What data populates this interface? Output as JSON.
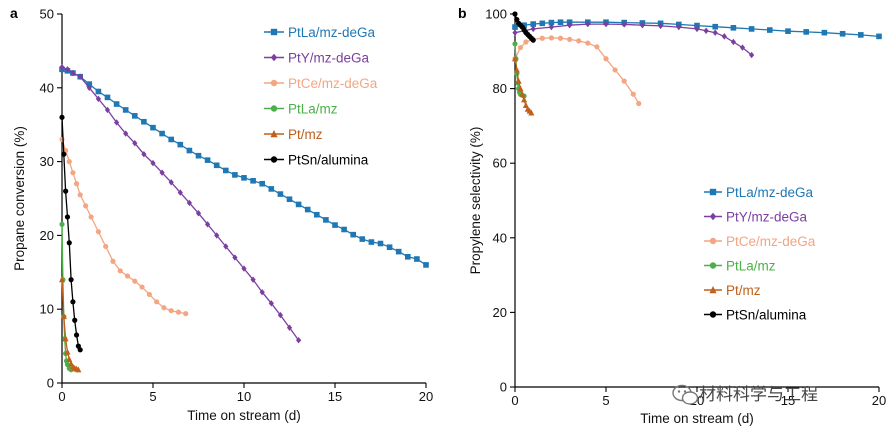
{
  "watermark": {
    "text": "材料科学与工程",
    "icon": "wechat-icon"
  },
  "chart_data": [
    {
      "panel_label": "a",
      "type": "scatter",
      "xlabel": "Time on stream (d)",
      "ylabel": "Propane conversion (%)",
      "xlim": [
        0,
        20
      ],
      "ylim": [
        0,
        50
      ],
      "xticks": [
        0,
        5,
        10,
        15,
        20
      ],
      "yticks": [
        0,
        10,
        20,
        30,
        40,
        50
      ],
      "legend_position": "top-right",
      "series": [
        {
          "name": "PtLa/mz-deGa",
          "color": "#1f77b4",
          "marker": "square",
          "x": [
            0,
            0.3,
            0.6,
            1,
            1.5,
            2,
            2.5,
            3,
            3.5,
            4,
            4.5,
            5,
            5.5,
            6,
            6.5,
            7,
            7.5,
            8,
            8.5,
            9,
            9.5,
            10,
            10.5,
            11,
            11.5,
            12,
            12.5,
            13,
            13.5,
            14,
            14.5,
            15,
            15.5,
            16,
            16.5,
            17,
            17.5,
            18,
            18.5,
            19,
            19.5,
            20
          ],
          "y": [
            42.5,
            42.3,
            42,
            41.5,
            40.5,
            39.5,
            38.7,
            37.8,
            37,
            36.2,
            35.4,
            34.6,
            33.8,
            33,
            32.3,
            31.5,
            30.8,
            30.2,
            29.5,
            28.8,
            28.2,
            27.8,
            27.4,
            27,
            26.3,
            25.6,
            24.9,
            24.2,
            23.5,
            22.8,
            22.1,
            21.4,
            20.8,
            20.1,
            19.5,
            19.1,
            18.9,
            18.4,
            17.8,
            17.1,
            16.8,
            16
          ]
        },
        {
          "name": "PtY/mz-deGa",
          "color": "#7b3fa0",
          "marker": "diamond",
          "x": [
            0,
            0.3,
            0.6,
            1,
            1.5,
            2,
            2.5,
            3,
            3.5,
            4,
            4.5,
            5,
            5.5,
            6,
            6.5,
            7,
            7.5,
            8,
            8.5,
            9,
            9.5,
            10,
            10.5,
            11,
            11.5,
            12,
            12.5,
            13
          ],
          "y": [
            42.8,
            42.5,
            42,
            41.5,
            40,
            38.5,
            37,
            35.3,
            33.8,
            32.5,
            31,
            29.8,
            28.5,
            27.2,
            25.8,
            24.4,
            23,
            21.5,
            20,
            18.5,
            17,
            15.5,
            14,
            12.3,
            10.8,
            9.2,
            7.5,
            5.8
          ]
        },
        {
          "name": "PtCe/mz-deGa",
          "color": "#f4a582",
          "marker": "circle",
          "x": [
            0,
            0.2,
            0.4,
            0.6,
            0.8,
            1,
            1.3,
            1.6,
            2,
            2.4,
            2.8,
            3.2,
            3.6,
            4,
            4.4,
            4.8,
            5.2,
            5.6,
            6,
            6.4,
            6.8
          ],
          "y": [
            33,
            31.5,
            30,
            28.5,
            27,
            25.5,
            24,
            22.5,
            20.5,
            18.5,
            16.5,
            15.2,
            14.5,
            13.8,
            13,
            12,
            11,
            10.2,
            9.8,
            9.6,
            9.4
          ]
        },
        {
          "name": "PtLa/mz",
          "color": "#4daf4a",
          "marker": "circle",
          "x": [
            0,
            0.05,
            0.1,
            0.15,
            0.2,
            0.25,
            0.3,
            0.4,
            0.5
          ],
          "y": [
            21.5,
            14,
            9,
            6,
            4,
            3,
            2.5,
            2,
            1.8
          ]
        },
        {
          "name": "Pt/mz",
          "color": "#c0601a",
          "marker": "triangle",
          "x": [
            0,
            0.1,
            0.2,
            0.3,
            0.4,
            0.5,
            0.6,
            0.7,
            0.8,
            0.9
          ],
          "y": [
            14,
            9,
            6,
            4.2,
            3.2,
            2.6,
            2.2,
            2,
            1.9,
            1.8
          ]
        },
        {
          "name": "PtSn/alumina",
          "color": "#000000",
          "marker": "circle",
          "x": [
            0,
            0.1,
            0.2,
            0.3,
            0.4,
            0.5,
            0.6,
            0.7,
            0.8,
            0.9,
            1.0
          ],
          "y": [
            36,
            31,
            26,
            22.5,
            19,
            14,
            11,
            8.5,
            6.5,
            5,
            4.5
          ]
        }
      ]
    },
    {
      "panel_label": "b",
      "type": "scatter",
      "xlabel": "Time on stream (d)",
      "ylabel": "Propylene selectivity (%)",
      "xlim": [
        0,
        20
      ],
      "ylim": [
        0,
        100
      ],
      "xticks": [
        0,
        5,
        10,
        15,
        20
      ],
      "yticks": [
        0,
        20,
        40,
        60,
        80,
        100
      ],
      "legend_position": "center-right",
      "series": [
        {
          "name": "PtLa/mz-deGa",
          "color": "#1f77b4",
          "marker": "square",
          "x": [
            0,
            0.5,
            1,
            1.5,
            2,
            2.5,
            3,
            4,
            5,
            6,
            7,
            8,
            9,
            10,
            11,
            12,
            13,
            14,
            15,
            16,
            17,
            18,
            19,
            20
          ],
          "y": [
            96.5,
            97,
            97.3,
            97.5,
            97.7,
            97.8,
            97.8,
            97.8,
            97.8,
            97.7,
            97.6,
            97.5,
            97.2,
            96.9,
            96.6,
            96.3,
            96,
            95.7,
            95.4,
            95.2,
            95,
            94.7,
            94.4,
            94
          ]
        },
        {
          "name": "PtY/mz-deGa",
          "color": "#7b3fa0",
          "marker": "diamond",
          "x": [
            0,
            0.5,
            1,
            2,
            3,
            4,
            5,
            6,
            7,
            8,
            9,
            10,
            10.5,
            11,
            11.5,
            12,
            12.5,
            13
          ],
          "y": [
            95,
            95.5,
            96,
            96.5,
            97,
            97.3,
            97.3,
            97.2,
            97,
            96.8,
            96.5,
            96,
            95.5,
            95,
            94,
            92.5,
            91,
            89
          ]
        },
        {
          "name": "PtCe/mz-deGa",
          "color": "#f4a582",
          "marker": "circle",
          "x": [
            0,
            0.3,
            0.6,
            1,
            1.5,
            2,
            2.5,
            3,
            3.5,
            4,
            4.5,
            5,
            5.5,
            6,
            6.5,
            6.8
          ],
          "y": [
            88,
            91,
            92.5,
            93.2,
            93.5,
            93.6,
            93.5,
            93.2,
            92.8,
            92.2,
            91.2,
            88,
            85,
            82,
            78.5,
            76
          ]
        },
        {
          "name": "PtLa/mz",
          "color": "#4daf4a",
          "marker": "circle",
          "x": [
            0,
            0.05,
            0.1,
            0.15,
            0.2,
            0.25,
            0.3,
            0.4,
            0.5
          ],
          "y": [
            92,
            88,
            84,
            81.5,
            80,
            79,
            78.5,
            78.2,
            78
          ]
        },
        {
          "name": "Pt/mz",
          "color": "#c0601a",
          "marker": "triangle",
          "x": [
            0,
            0.1,
            0.2,
            0.3,
            0.4,
            0.5,
            0.6,
            0.7,
            0.8,
            0.9
          ],
          "y": [
            88,
            85,
            82,
            80,
            78.5,
            77,
            75.5,
            74.5,
            74,
            73.5
          ]
        },
        {
          "name": "PtSn/alumina",
          "color": "#000000",
          "marker": "circle",
          "x": [
            0,
            0.1,
            0.2,
            0.3,
            0.4,
            0.5,
            0.6,
            0.7,
            0.8,
            0.9,
            1.0
          ],
          "y": [
            100,
            98.5,
            97.5,
            97,
            96.5,
            95.8,
            95,
            94.5,
            94,
            93.5,
            93
          ]
        }
      ]
    }
  ]
}
